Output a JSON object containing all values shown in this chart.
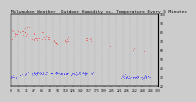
{
  "title": "Milwaukee Weather  Outdoor Humidity vs. Temperature Every 5 Minutes",
  "title_fontsize": 3.2,
  "bg_color": "#cccccc",
  "plot_bg_color": "#cccccc",
  "red_color": "#ff0000",
  "blue_color": "#0000ff",
  "grid_color": "#888888",
  "tick_fontsize": 2.2,
  "ylim": [
    20,
    100
  ],
  "xlim": [
    0,
    300
  ],
  "right_yticks": [
    20,
    30,
    40,
    50,
    60,
    70,
    80,
    90,
    100
  ],
  "right_yticklabels": [
    "20",
    "30",
    "40",
    "50",
    "60",
    "70",
    "80",
    "90",
    "100"
  ],
  "num_gridlines": 22,
  "red_segments": [
    {
      "x_start": 0,
      "x_end": 18,
      "y": 78,
      "spread": 4
    },
    {
      "x_start": 20,
      "x_end": 38,
      "y": 82,
      "spread": 3
    },
    {
      "x_start": 40,
      "x_end": 58,
      "y": 72,
      "spread": 3
    },
    {
      "x_start": 60,
      "x_end": 78,
      "y": 75,
      "spread": 3
    },
    {
      "x_start": 82,
      "x_end": 95,
      "y": 68,
      "spread": 2
    },
    {
      "x_start": 105,
      "x_end": 118,
      "y": 70,
      "spread": 2
    },
    {
      "x_start": 152,
      "x_end": 165,
      "y": 72,
      "spread": 2
    },
    {
      "x_start": 200,
      "x_end": 202,
      "y": 65,
      "spread": 1
    },
    {
      "x_start": 248,
      "x_end": 252,
      "y": 60,
      "spread": 1
    },
    {
      "x_start": 270,
      "x_end": 272,
      "y": 58,
      "spread": 1
    }
  ],
  "blue_segments": [
    {
      "x_start": 0,
      "x_end": 12,
      "y": 30,
      "spread": 1
    },
    {
      "x_start": 18,
      "x_end": 22,
      "y": 32,
      "spread": 1
    },
    {
      "x_start": 28,
      "x_end": 35,
      "y": 34,
      "spread": 1
    },
    {
      "x_start": 40,
      "x_end": 75,
      "y": 34,
      "spread": 1
    },
    {
      "x_start": 80,
      "x_end": 118,
      "y": 34,
      "spread": 1
    },
    {
      "x_start": 122,
      "x_end": 158,
      "y": 34,
      "spread": 1
    },
    {
      "x_start": 162,
      "x_end": 168,
      "y": 34,
      "spread": 1
    },
    {
      "x_start": 220,
      "x_end": 260,
      "y": 30,
      "spread": 1
    },
    {
      "x_start": 265,
      "x_end": 285,
      "y": 30,
      "spread": 1
    }
  ]
}
